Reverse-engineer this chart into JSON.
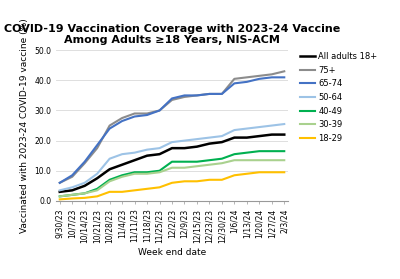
{
  "title": "COVID-19 Vaccination Coverage with 2023-24 Vaccine\nAmong Adults ≥18 Years, NIS-ACM",
  "xlabel": "Week end date",
  "ylabel": "Vaccinated with 2023-24 COVID-19 vaccine (%)",
  "ylim": [
    0,
    50
  ],
  "yticks": [
    0.0,
    10.0,
    20.0,
    30.0,
    40.0,
    50.0
  ],
  "x_labels": [
    "9/30/23",
    "10/7/23",
    "10/14/23",
    "10/21/23",
    "10/28/23",
    "11/4/23",
    "11/11/23",
    "11/18/23",
    "11/25/23",
    "12/2/23",
    "12/9/23",
    "12/15/23",
    "12/23/23",
    "12/30/23",
    "1/6/24",
    "1/13/24",
    "1/20/24",
    "1/27/24",
    "2/3/24"
  ],
  "series": [
    {
      "label": "All adults 18+",
      "color": "#000000",
      "linewidth": 1.8,
      "values": [
        3.0,
        3.5,
        5.0,
        7.5,
        10.5,
        12.0,
        13.5,
        15.0,
        15.5,
        17.5,
        17.5,
        18.0,
        19.0,
        19.5,
        21.0,
        21.0,
        21.5,
        22.0,
        22.0
      ]
    },
    {
      "label": "75+",
      "color": "#8c8c8c",
      "linewidth": 1.5,
      "values": [
        6.0,
        8.0,
        12.5,
        17.5,
        25.0,
        27.5,
        29.0,
        29.0,
        30.0,
        33.5,
        34.5,
        35.0,
        35.5,
        35.5,
        40.5,
        41.0,
        41.5,
        42.0,
        43.0
      ]
    },
    {
      "label": "65-74",
      "color": "#4472c4",
      "linewidth": 1.5,
      "values": [
        6.0,
        8.5,
        13.0,
        18.5,
        24.0,
        26.5,
        28.0,
        28.5,
        30.0,
        34.0,
        35.0,
        35.0,
        35.5,
        35.5,
        39.0,
        39.5,
        40.5,
        41.0,
        41.0
      ]
    },
    {
      "label": "50-64",
      "color": "#9dc3e6",
      "linewidth": 1.5,
      "values": [
        3.5,
        4.5,
        6.0,
        9.0,
        14.0,
        15.5,
        16.0,
        17.0,
        17.5,
        19.5,
        20.0,
        20.5,
        21.0,
        21.5,
        23.5,
        24.0,
        24.5,
        25.0,
        25.5
      ]
    },
    {
      "label": "40-49",
      "color": "#00b050",
      "linewidth": 1.5,
      "values": [
        1.5,
        2.0,
        2.5,
        4.0,
        7.0,
        8.5,
        9.5,
        9.5,
        10.0,
        13.0,
        13.0,
        13.0,
        13.5,
        14.0,
        15.5,
        16.0,
        16.5,
        16.5,
        16.5
      ]
    },
    {
      "label": "30-39",
      "color": "#a9d18e",
      "linewidth": 1.5,
      "values": [
        1.5,
        2.0,
        2.5,
        3.5,
        6.5,
        8.0,
        9.0,
        9.0,
        9.5,
        11.0,
        11.0,
        11.5,
        12.0,
        12.5,
        13.5,
        13.5,
        13.5,
        13.5,
        13.5
      ]
    },
    {
      "label": "18-29",
      "color": "#ffc000",
      "linewidth": 1.5,
      "values": [
        0.5,
        0.8,
        1.0,
        1.5,
        3.0,
        3.0,
        3.5,
        4.0,
        4.5,
        6.0,
        6.5,
        6.5,
        7.0,
        7.0,
        8.5,
        9.0,
        9.5,
        9.5,
        9.5
      ]
    }
  ],
  "background_color": "#ffffff",
  "grid_color": "#d9d9d9",
  "title_fontsize": 8,
  "axis_label_fontsize": 6.5,
  "tick_fontsize": 5.5,
  "legend_fontsize": 6
}
